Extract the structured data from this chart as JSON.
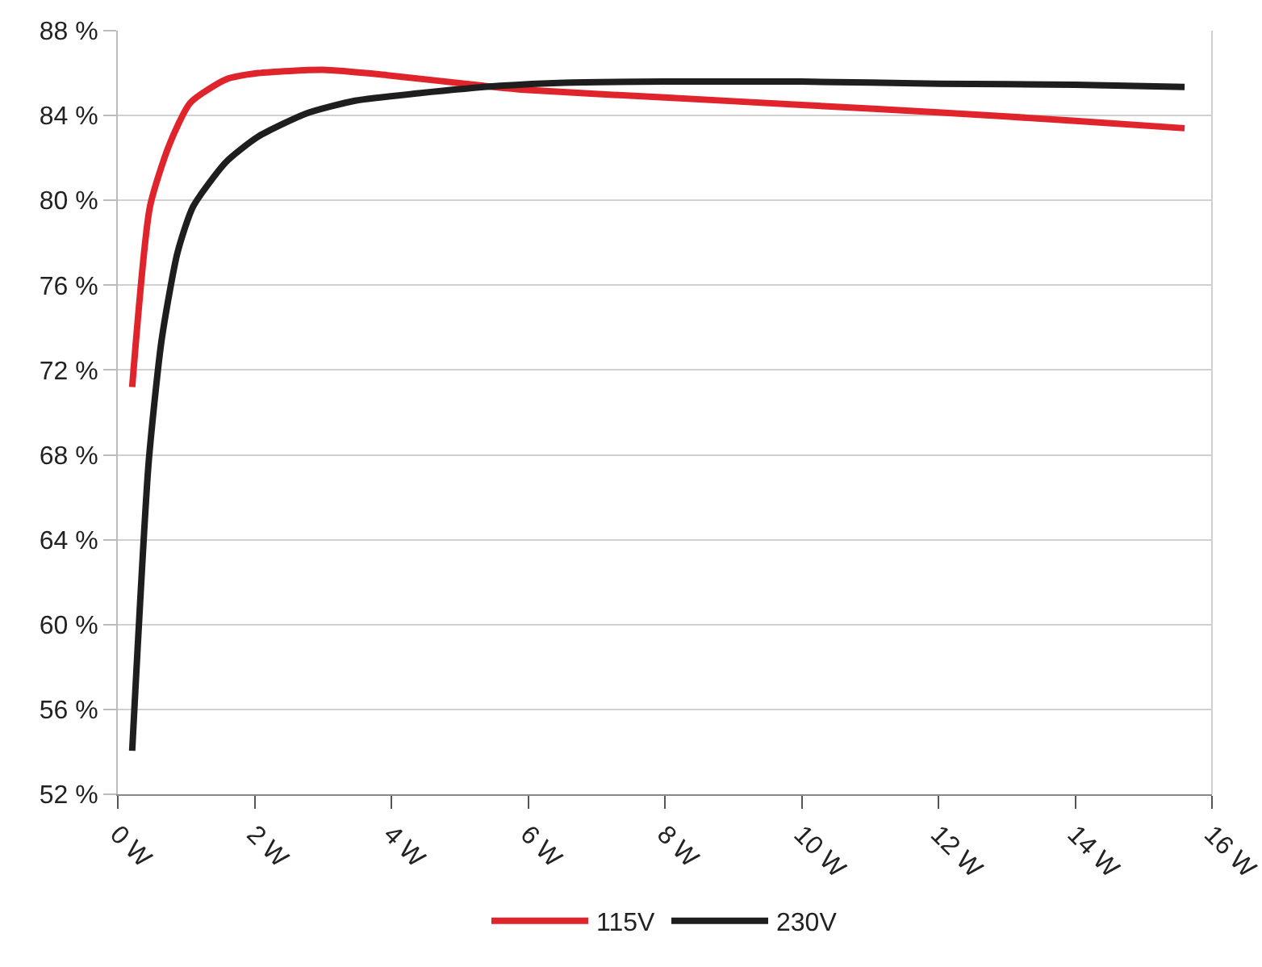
{
  "chart_data": {
    "type": "line",
    "xlim": [
      0,
      16
    ],
    "xticks": [
      {
        "value": 0,
        "label": "0 W"
      },
      {
        "value": 2,
        "label": "2 W"
      },
      {
        "value": 4,
        "label": "4 W"
      },
      {
        "value": 6,
        "label": "6 W"
      },
      {
        "value": 8,
        "label": "8 W"
      },
      {
        "value": 10,
        "label": "10 W"
      },
      {
        "value": 12,
        "label": "12 W"
      },
      {
        "value": 14,
        "label": "14 W"
      },
      {
        "value": 16,
        "label": "16 W"
      }
    ],
    "ylim": [
      52,
      88
    ],
    "yticks": [
      {
        "value": 52,
        "label": "52 %"
      },
      {
        "value": 56,
        "label": "56 %"
      },
      {
        "value": 60,
        "label": "60 %"
      },
      {
        "value": 64,
        "label": "64 %"
      },
      {
        "value": 68,
        "label": "68 %"
      },
      {
        "value": 72,
        "label": "72 %"
      },
      {
        "value": 76,
        "label": "76 %"
      },
      {
        "value": 80,
        "label": "80 %"
      },
      {
        "value": 84,
        "label": "84 %"
      },
      {
        "value": 88,
        "label": "88 %"
      }
    ],
    "grid": "y",
    "legend": "bottom",
    "marker": "none",
    "line_style": "solid",
    "series": [
      {
        "name": "115V",
        "color": "#e0242b",
        "x": [
          0.21,
          0.47,
          0.75,
          1.06,
          1.58,
          2.05,
          3.0,
          3.94,
          5.35,
          6.0,
          8.0,
          10.0,
          12.0,
          14.0,
          15.6
        ],
        "values": [
          71.2,
          79.7,
          82.6,
          84.6,
          85.7,
          86.0,
          86.15,
          85.9,
          85.4,
          85.2,
          84.85,
          84.5,
          84.15,
          83.75,
          83.4
        ]
      },
      {
        "name": "230V",
        "color": "#1e1e1e",
        "x": [
          0.21,
          0.45,
          0.64,
          0.87,
          1.1,
          1.58,
          2.05,
          2.76,
          3.47,
          4.4,
          5.59,
          6.53,
          8.0,
          10.0,
          12.0,
          14.0,
          15.6
        ],
        "values": [
          54.05,
          67.6,
          73.4,
          77.5,
          79.7,
          81.8,
          83.0,
          84.1,
          84.7,
          85.05,
          85.4,
          85.55,
          85.6,
          85.6,
          85.5,
          85.45,
          85.35
        ]
      }
    ]
  }
}
